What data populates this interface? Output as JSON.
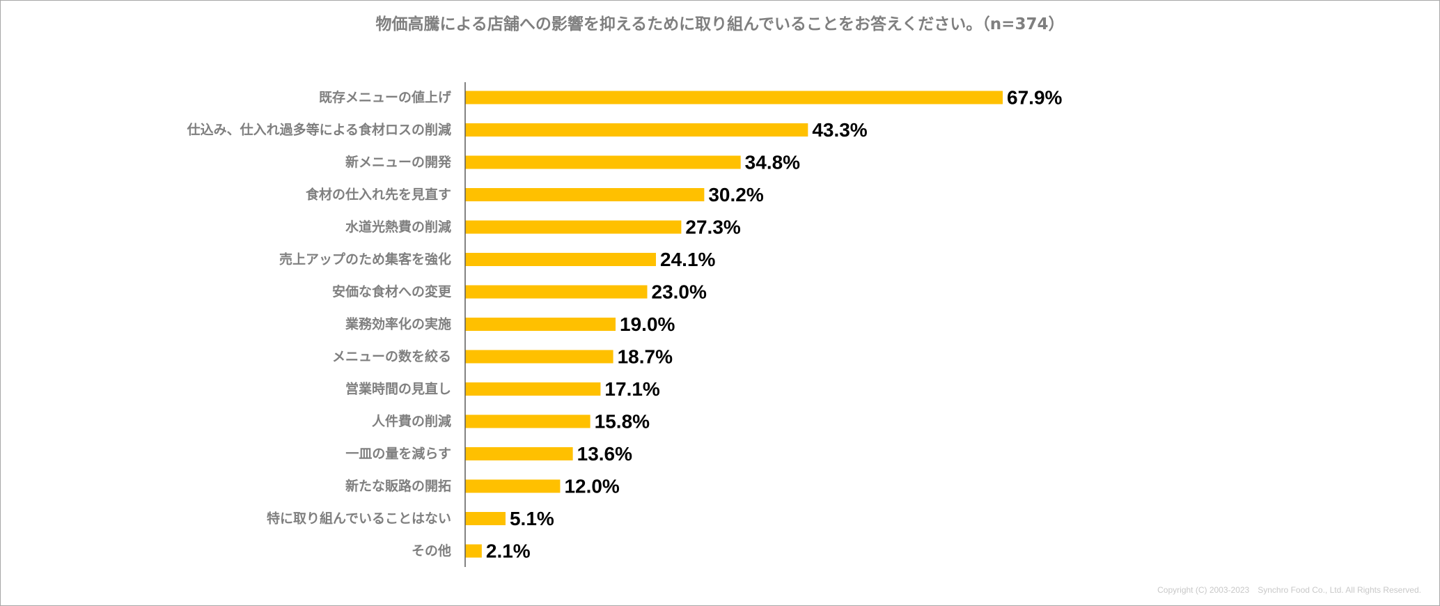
{
  "chart_data": {
    "type": "bar",
    "orientation": "horizontal",
    "title": "物価高騰による店舗への影響を抑えるために取り組んでいることをお答えください。（n=374）",
    "categories": [
      "既存メニューの値上げ",
      "仕込み、仕入れ過多等による食材ロスの削減",
      "新メニューの開発",
      "食材の仕入れ先を見直す",
      "水道光熱費の削減",
      "売上アップのため集客を強化",
      "安価な食材への変更",
      "業務効率化の実施",
      "メニューの数を絞る",
      "営業時間の見直し",
      "人件費の削減",
      "一皿の量を減らす",
      "新たな販路の開拓",
      "特に取り組んでいることはない",
      "その他"
    ],
    "values": [
      67.9,
      43.3,
      34.8,
      30.2,
      27.3,
      24.1,
      23.0,
      19.0,
      18.7,
      17.1,
      15.8,
      13.6,
      12.0,
      5.1,
      2.1
    ],
    "value_labels": [
      "67.9%",
      "43.3%",
      "34.8%",
      "30.2%",
      "27.3%",
      "24.1%",
      "23.0%",
      "19.0%",
      "18.7%",
      "17.1%",
      "15.8%",
      "13.6%",
      "12.0%",
      "5.1%",
      "2.1%"
    ],
    "unit": "%",
    "xlim": [
      0,
      100
    ],
    "grid": false,
    "legend": "none",
    "bar_color": "#FFC000",
    "axis_color": "#595959",
    "category_label_color": "#7F7F7F",
    "value_label_color": "#000000"
  },
  "footer": {
    "copyright": "Copyright (C) 2003-2023　Synchro Food Co., Ltd. All Rights Reserved."
  }
}
